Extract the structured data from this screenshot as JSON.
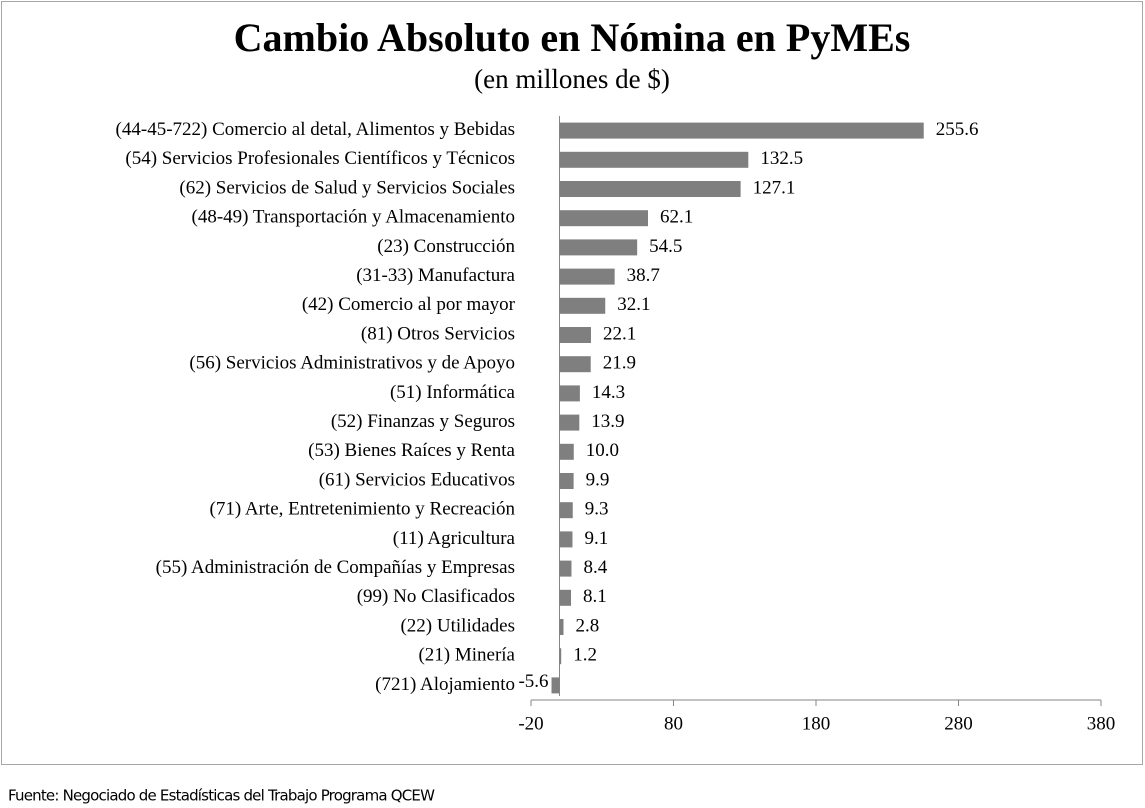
{
  "chart_data": {
    "type": "barh",
    "title": "Cambio Absoluto en Nómina en PyMEs",
    "subtitle": "(en millones  de $)",
    "source": "Fuente: Negociado de Estadísticas del Trabajo Programa QCEW",
    "categories": [
      "(44-45-722) Comercio al detal, Alimentos y Bebidas",
      "(54) Servicios Profesionales Científicos y Técnicos",
      "(62) Servicios de Salud y Servicios Sociales",
      "(48-49) Transportación y Almacenamiento",
      "(23) Construcción",
      "(31-33) Manufactura",
      "(42) Comercio al por mayor",
      "(81) Otros Servicios",
      "(56) Servicios Administrativos y de Apoyo",
      "(51) Informática",
      "(52) Finanzas y Seguros",
      "(53) Bienes Raíces y Renta",
      "(61) Servicios Educativos",
      "(71) Arte, Entretenimiento y Recreación",
      "(11) Agricultura",
      "(55) Administración de Compañías y Empresas",
      "(99) No Clasificados",
      "(22) Utilidades",
      "(21) Minería",
      "(721) Alojamiento"
    ],
    "values": [
      255.6,
      132.5,
      127.1,
      62.1,
      54.5,
      38.7,
      32.1,
      22.1,
      21.9,
      14.3,
      13.9,
      10.0,
      9.9,
      9.3,
      9.1,
      8.4,
      8.1,
      2.8,
      1.2,
      -5.6
    ],
    "value_labels": [
      "255.6",
      "132.5",
      "127.1",
      "62.1",
      "54.5",
      "38.7",
      "32.1",
      "22.1",
      "21.9",
      "14.3",
      "13.9",
      "10.0",
      "9.9",
      "9.3",
      "9.1",
      "8.4",
      "8.1",
      "2.8",
      "1.2",
      "-5.6"
    ],
    "color": "#7f7f7f",
    "xlim": [
      -20,
      380
    ],
    "xticks": [
      -20,
      80,
      180,
      280,
      380
    ]
  }
}
